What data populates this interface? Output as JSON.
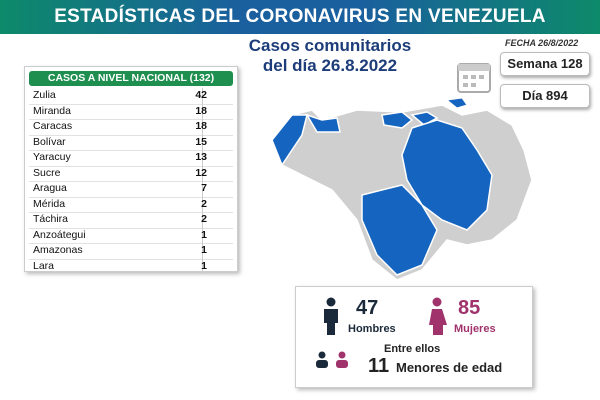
{
  "header": {
    "title": "ESTADÍSTICAS DEL CORONAVIRUS EN VENEZUELA",
    "subtitle": [
      "Casos comunitarios",
      "del día 26.8.2022"
    ],
    "date": "FECHA 26/8/2022"
  },
  "calendar": {
    "week": "Semana 128",
    "day": "Día 894"
  },
  "table": {
    "header": "CASOS A NIVEL NACIONAL (132)",
    "rows": [
      [
        "Zulia",
        42
      ],
      [
        "Miranda",
        18
      ],
      [
        "Caracas",
        18
      ],
      [
        "Bolívar",
        15
      ],
      [
        "Yaracuy",
        13
      ],
      [
        "Sucre",
        12
      ],
      [
        "Aragua",
        7
      ],
      [
        "Mérida",
        2
      ],
      [
        "Táchira",
        2
      ],
      [
        "Anzoátegui",
        1
      ],
      [
        "Amazonas",
        1
      ],
      [
        "Lara",
        1
      ]
    ]
  },
  "stats": {
    "male": {
      "value": 47,
      "label": "Hombres"
    },
    "female": {
      "value": 85,
      "label": "Mujeres"
    },
    "minors": {
      "intro": "Entre ellos",
      "value": 11,
      "label": "Menores de edad"
    }
  }
}
